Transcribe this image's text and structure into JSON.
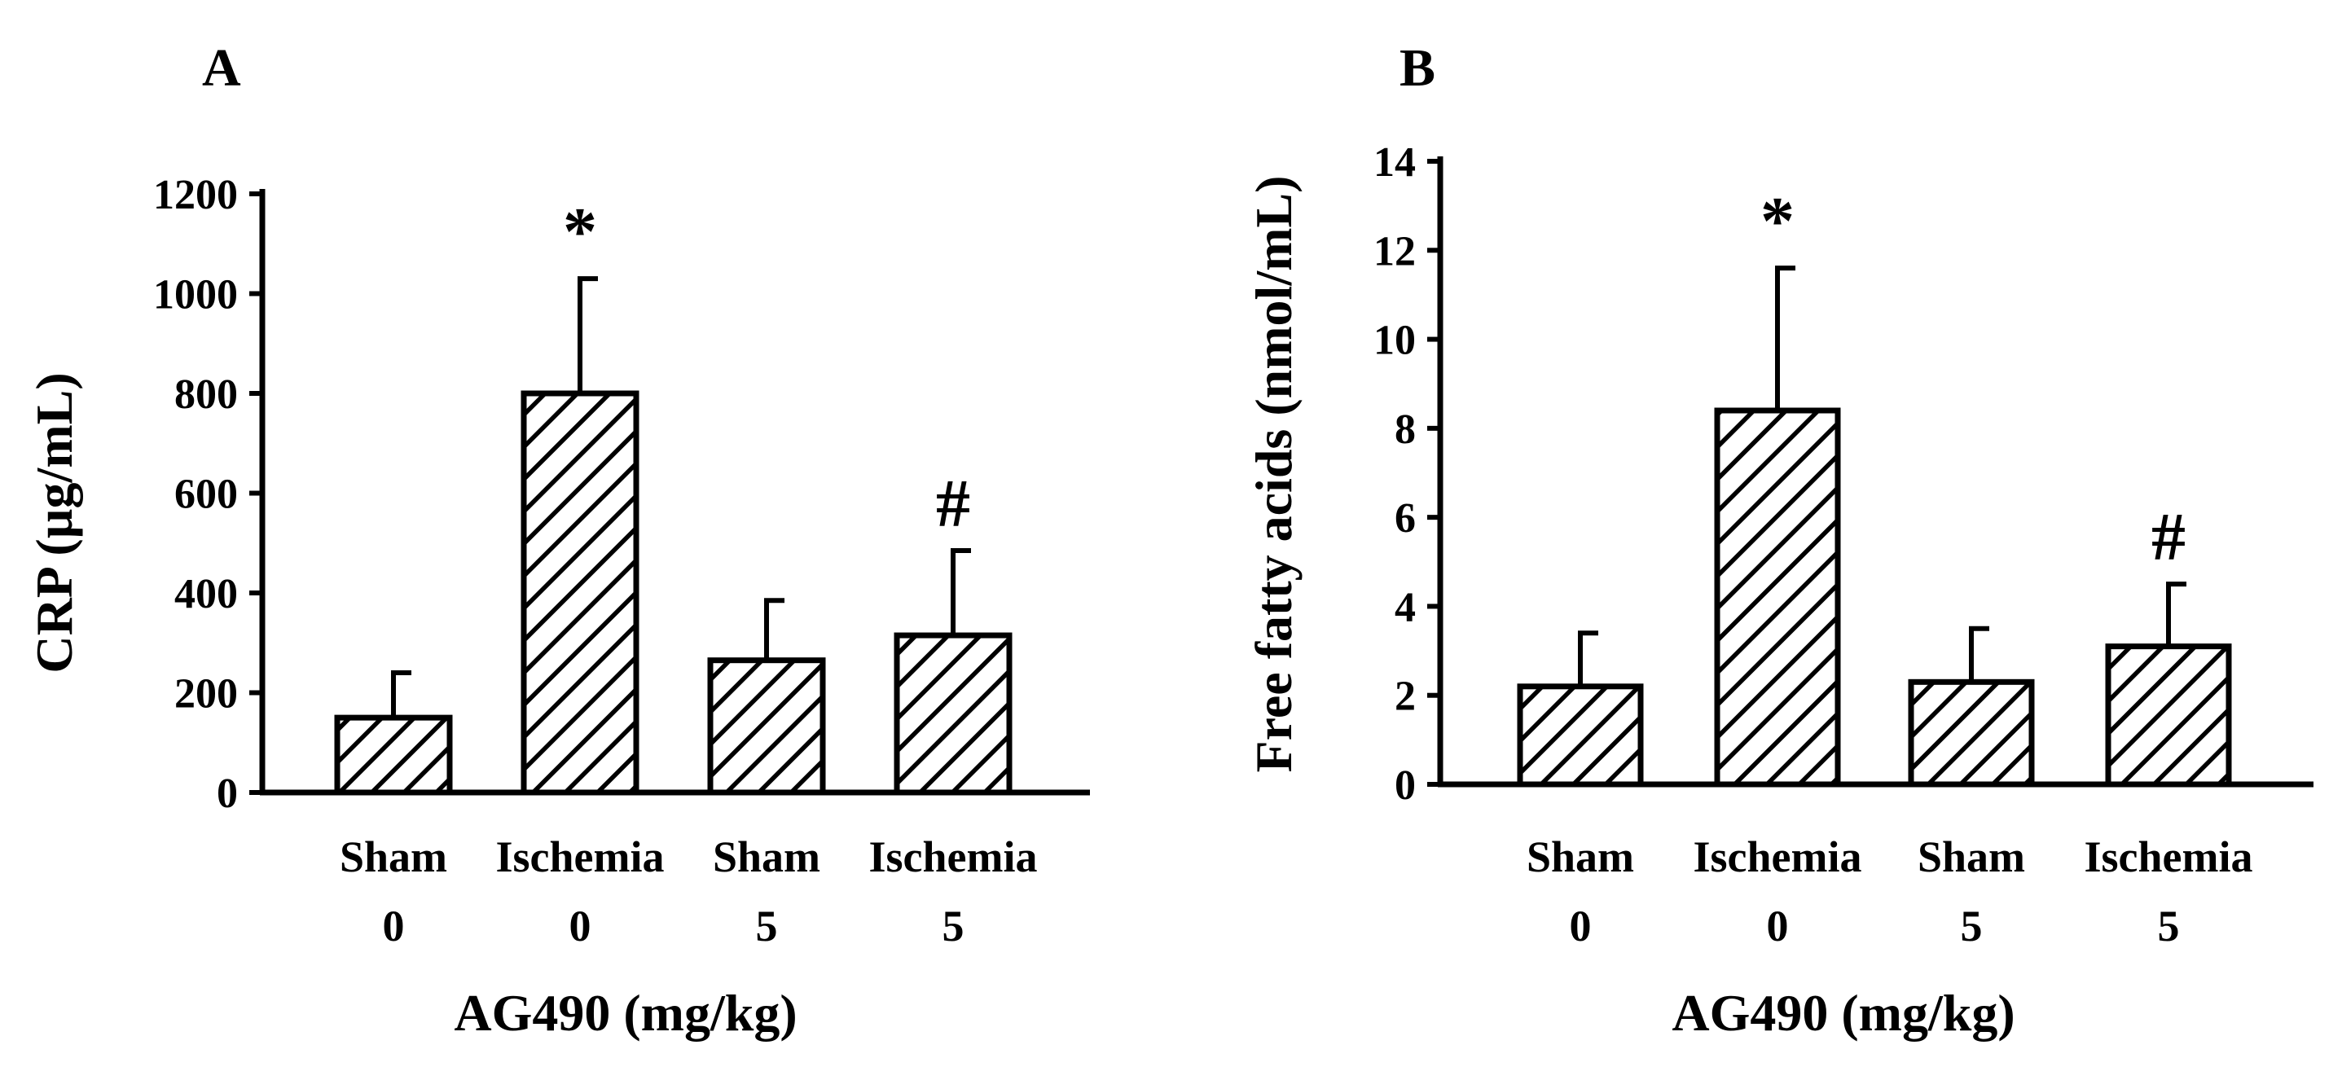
{
  "colors": {
    "ink": "#000000",
    "background": "#ffffff",
    "bar_fill": "hatched-diagonal"
  },
  "chart_data": [
    {
      "type": "bar",
      "panel": "A",
      "ylabel": "CRP (µg/mL)",
      "xlabel": "AG490 (mg/kg)",
      "categories": [
        "Sham",
        "Ischemia",
        "Sham",
        "Ischemia"
      ],
      "doses": [
        "0",
        "0",
        "5",
        "5"
      ],
      "values": [
        150,
        800,
        265,
        315
      ],
      "errors": [
        90,
        230,
        120,
        170
      ],
      "markers": [
        "",
        "*",
        "",
        "#"
      ],
      "ylim": [
        0,
        1200
      ],
      "yticks": [
        "0",
        "200",
        "400",
        "600",
        "800",
        "1000",
        "1200"
      ]
    },
    {
      "type": "bar",
      "panel": "B",
      "ylabel": "Free fatty acids (nmol/mL)",
      "xlabel": "AG490 (mg/kg)",
      "categories": [
        "Sham",
        "Ischemia",
        "Sham",
        "Ischemia"
      ],
      "doses": [
        "0",
        "0",
        "5",
        "5"
      ],
      "values": [
        2.2,
        8.4,
        2.3,
        3.1
      ],
      "errors": [
        1.2,
        3.2,
        1.2,
        1.4
      ],
      "markers": [
        "",
        "*",
        "",
        "#"
      ],
      "ylim": [
        0,
        14
      ],
      "yticks": [
        "0",
        "2",
        "4",
        "6",
        "8",
        "10",
        "12",
        "14"
      ]
    }
  ]
}
